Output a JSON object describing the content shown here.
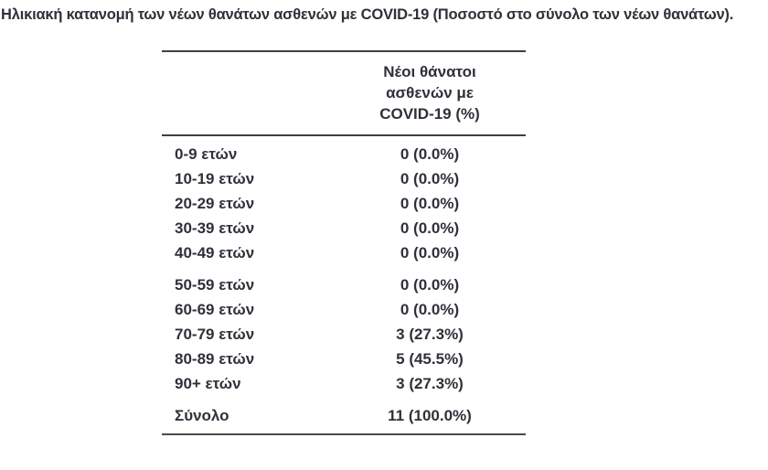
{
  "page_title": "Ηλικιακή κατανομή των νέων θανάτων ασθενών με COVID-19 (Ποσοστό στο σύνολο των νέων θανάτων).",
  "table": {
    "header": {
      "line1": "Νέοι θάνατοι",
      "line2": "ασθενών με",
      "line3": "COVID-19 (%)"
    },
    "groups": [
      {
        "rows": [
          {
            "label": "0-9 ετών",
            "value": "0 (0.0%)"
          },
          {
            "label": "10-19 ετών",
            "value": "0 (0.0%)"
          },
          {
            "label": "20-29 ετών",
            "value": "0 (0.0%)"
          },
          {
            "label": "30-39 ετών",
            "value": "0 (0.0%)"
          },
          {
            "label": "40-49 ετών",
            "value": "0 (0.0%)"
          }
        ]
      },
      {
        "rows": [
          {
            "label": "50-59 ετών",
            "value": "0 (0.0%)"
          },
          {
            "label": "60-69 ετών",
            "value": "0 (0.0%)"
          },
          {
            "label": "70-79 ετών",
            "value": "3 (27.3%)"
          },
          {
            "label": "80-89 ετών",
            "value": "5 (45.5%)"
          },
          {
            "label": "90+ ετών",
            "value": "3 (27.3%)"
          }
        ]
      }
    ],
    "total": {
      "label": "Σύνολο",
      "value": "11 (100.0%)"
    }
  },
  "colors": {
    "text": "#30303a",
    "rule_line": "#3f3f3f",
    "background": "#ffffff"
  },
  "chart_data": {
    "type": "table",
    "title": "Ηλικιακή κατανομή των νέων θανάτων ασθενών με COVID-19 (Ποσοστό στο σύνολο των νέων θανάτων).",
    "column_header": "Νέοι θάνατοι ασθενών με COVID-19 (%)",
    "categories": [
      "0-9 ετών",
      "10-19 ετών",
      "20-29 ετών",
      "30-39 ετών",
      "40-49 ετών",
      "50-59 ετών",
      "60-69 ετών",
      "70-79 ετών",
      "80-89 ετών",
      "90+ ετών",
      "Σύνολο"
    ],
    "counts": [
      0,
      0,
      0,
      0,
      0,
      0,
      0,
      3,
      5,
      3,
      11
    ],
    "percentages": [
      0.0,
      0.0,
      0.0,
      0.0,
      0.0,
      0.0,
      0.0,
      27.3,
      45.5,
      27.3,
      100.0
    ]
  }
}
